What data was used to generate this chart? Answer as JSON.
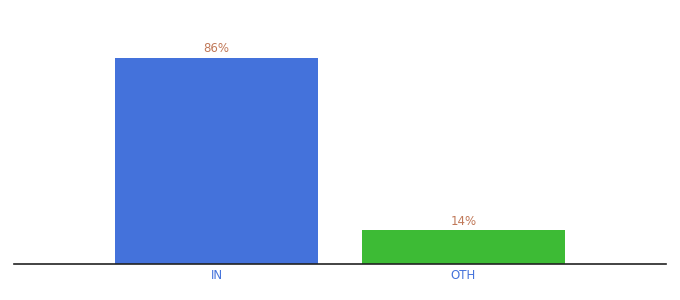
{
  "categories": [
    "IN",
    "OTH"
  ],
  "values": [
    86,
    14
  ],
  "bar_colors": [
    "#4472db",
    "#3dbb35"
  ],
  "label_color": "#c07858",
  "tick_color": "#4472db",
  "background_color": "#ffffff",
  "ylim": [
    0,
    100
  ],
  "bar_width": 0.28,
  "label_fontsize": 8.5,
  "tick_fontsize": 8.5,
  "x_positions": [
    0.33,
    0.67
  ]
}
